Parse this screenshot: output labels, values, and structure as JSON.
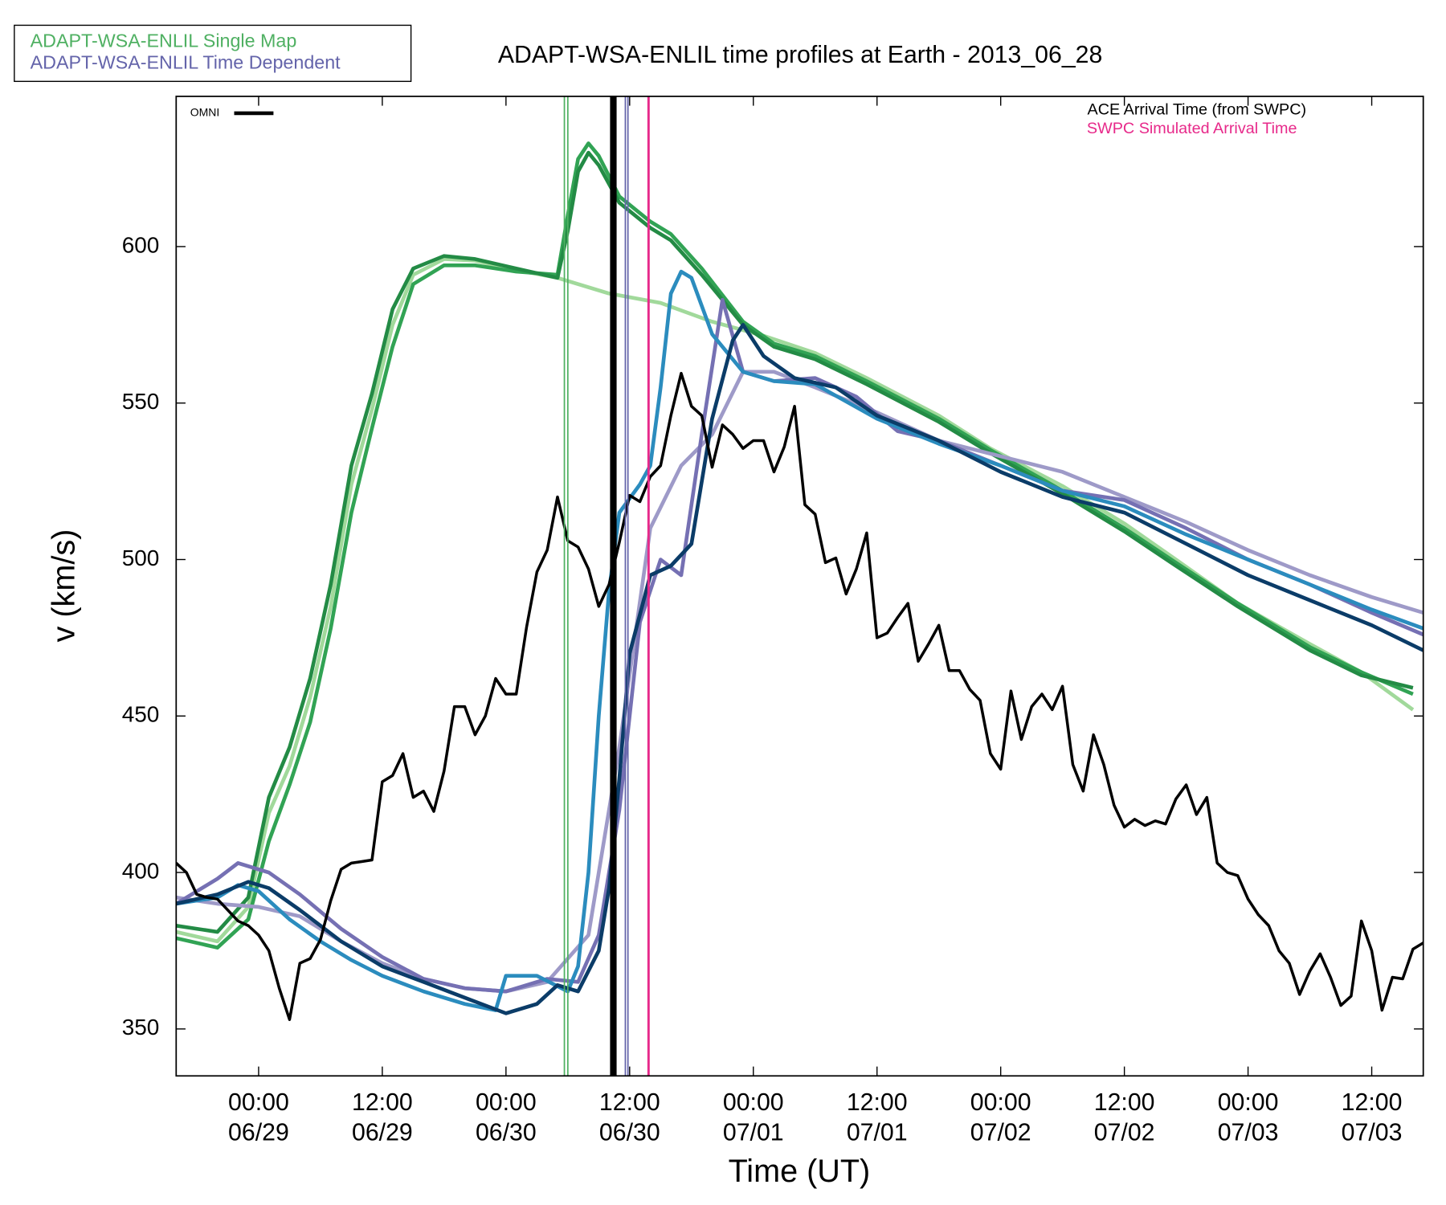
{
  "chart_data": {
    "type": "line",
    "title": "ADAPT-WSA-ENLIL time profiles at Earth - 2013_06_28",
    "xlabel": "Time (UT)",
    "ylabel": "v (km/s)",
    "xlim": [
      "06/28 16:00",
      "07/03 17:00"
    ],
    "ylim": [
      335,
      648
    ],
    "yticks": [
      350,
      400,
      450,
      500,
      550,
      600
    ],
    "xticks": [
      {
        "value": "06/29 00:00",
        "label": "00:00\n06/29"
      },
      {
        "value": "06/29 12:00",
        "label": "12:00\n06/29"
      },
      {
        "value": "06/30 00:00",
        "label": "00:00\n06/30"
      },
      {
        "value": "06/30 12:00",
        "label": "12:00\n06/30"
      },
      {
        "value": "07/01 00:00",
        "label": "00:00\n07/01"
      },
      {
        "value": "07/01 12:00",
        "label": "12:00\n07/01"
      },
      {
        "value": "07/02 00:00",
        "label": "00:00\n07/02"
      },
      {
        "value": "07/02 12:00",
        "label": "12:00\n07/02"
      },
      {
        "value": "07/03 00:00",
        "label": "00:00\n07/03"
      },
      {
        "value": "07/03 12:00",
        "label": "12:00\n07/03"
      }
    ],
    "ensembles": [
      {
        "name": "ADAPT-WSA-ENLIL Single Map",
        "color": "#4fb062",
        "arrivals": [
          "06/30 05:40",
          "06/30 06:00"
        ],
        "members": [
          {
            "color": "#a1d99b",
            "x": [
              "06/28 16:00",
              "06/28 20:00",
              "06/28 23:00",
              "06/29 01:00",
              "06/29 03:00",
              "06/29 05:00",
              "06/29 07:00",
              "06/29 09:00",
              "06/29 11:00",
              "06/29 13:00",
              "06/29 15:00",
              "06/29 18:00",
              "06/29 21:00",
              "06/30 01:00",
              "06/30 05:00",
              "06/30 10:00",
              "06/30 15:00",
              "06/30 20:00",
              "07/01 01:00",
              "07/01 06:00",
              "07/01 11:00",
              "07/01 18:00",
              "07/01 23:00",
              "07/02 06:00",
              "07/02 12:00",
              "07/02 17:00",
              "07/02 23:00",
              "07/03 06:00",
              "07/03 11:00",
              "07/03 16:00"
            ],
            "values": [
              381,
              378,
              389,
              419,
              434,
              456,
              485,
              524,
              548,
              575,
              591,
              596,
              595.5,
              592.5,
              590,
              585,
              582,
              576,
              571.5,
              566,
              558,
              546,
              535.5,
              523.5,
              511.5,
              500,
              486,
              473,
              464,
              452
            ]
          },
          {
            "color": "#31a354",
            "x": [
              "06/28 16:00",
              "06/28 20:00",
              "06/28 23:00",
              "06/29 01:00",
              "06/29 03:00",
              "06/29 05:00",
              "06/29 07:00",
              "06/29 09:00",
              "06/29 11:00",
              "06/29 13:00",
              "06/29 15:00",
              "06/29 18:00",
              "06/29 21:00",
              "06/30 01:00",
              "06/30 05:00",
              "06/30 06:00",
              "06/30 07:00",
              "06/30 08:00",
              "06/30 09:00",
              "06/30 11:00",
              "06/30 14:00",
              "06/30 16:00",
              "06/30 19:00",
              "06/30 23:00",
              "07/01 02:00",
              "07/01 06:00",
              "07/01 11:00",
              "07/01 18:00",
              "07/01 23:00",
              "07/02 06:00",
              "07/02 12:00",
              "07/02 17:00",
              "07/02 23:00",
              "07/03 06:00",
              "07/03 11:00",
              "07/03 16:00"
            ],
            "values": [
              379,
              376,
              385,
              410,
              428,
              448,
              478,
              515,
              542,
              568,
              588,
              594,
              594,
              592,
              591,
              610,
              628,
              633,
              629,
              616,
              608,
              604,
              593,
              576,
              569,
              565,
              557,
              545,
              535,
              522,
              510,
              499,
              486,
              472,
              464,
              457
            ]
          },
          {
            "color": "#238b45",
            "x": [
              "06/28 16:00",
              "06/28 20:00",
              "06/28 23:00",
              "06/29 01:00",
              "06/29 03:00",
              "06/29 05:00",
              "06/29 07:00",
              "06/29 09:00",
              "06/29 11:00",
              "06/29 13:00",
              "06/29 15:00",
              "06/29 18:00",
              "06/29 21:00",
              "06/30 01:00",
              "06/30 05:00",
              "06/30 06:00",
              "06/30 07:00",
              "06/30 08:00",
              "06/30 09:00",
              "06/30 11:00",
              "06/30 14:00",
              "06/30 16:00",
              "06/30 19:00",
              "06/30 23:00",
              "07/01 02:00",
              "07/01 06:00",
              "07/01 11:00",
              "07/01 18:00",
              "07/01 23:00",
              "07/02 06:00",
              "07/02 12:00",
              "07/02 17:00",
              "07/02 23:00",
              "07/03 06:00",
              "07/03 11:00",
              "07/03 16:00"
            ],
            "values": [
              383,
              381,
              392,
              424,
              440,
              462,
              492,
              530,
              553,
              580,
              593,
              597,
              596,
              593,
              590,
              605,
              624,
              630,
              626,
              614,
              606,
              602,
              591,
              575,
              568,
              564,
              556,
              544,
              534,
              521,
              509,
              498,
              485,
              471,
              463,
              459
            ]
          }
        ]
      },
      {
        "name": "ADAPT-WSA-ENLIL Time Dependent",
        "color": "#6464aa",
        "arrivals": [
          "06/30 11:35",
          "06/30 11:50"
        ],
        "members": [
          {
            "color": "#9e9ac8",
            "x": [
              "06/28 16:00",
              "06/28 20:00",
              "06/29 00:00",
              "06/29 04:00",
              "06/29 08:00",
              "06/29 12:00",
              "06/29 16:00",
              "06/29 20:00",
              "06/30 00:00",
              "06/30 04:00",
              "06/30 08:00",
              "06/30 11:00",
              "06/30 14:00",
              "06/30 17:00",
              "06/30 20:00",
              "06/30 23:00",
              "07/01 02:00",
              "07/01 06:00",
              "07/01 12:00",
              "07/01 18:00",
              "07/02 00:00",
              "07/02 06:00",
              "07/02 12:00",
              "07/02 18:00",
              "07/03 00:00",
              "07/03 06:00",
              "07/03 12:00",
              "07/03 17:00"
            ],
            "values": [
              392,
              390,
              389,
              386,
              378,
              371,
              366,
              363,
              362,
              365,
              380,
              440,
              510,
              530,
              540,
              560,
              560,
              555,
              547,
              538,
              533,
              528,
              520,
              512,
              503,
              495,
              488,
              483
            ]
          },
          {
            "color": "#7570b3",
            "x": [
              "06/28 16:00",
              "06/28 20:00",
              "06/28 22:00",
              "06/29 01:00",
              "06/29 04:00",
              "06/29 08:00",
              "06/29 12:00",
              "06/29 16:00",
              "06/29 20:00",
              "06/30 00:00",
              "06/30 04:00",
              "06/30 07:00",
              "06/30 09:00",
              "06/30 11:00",
              "06/30 13:00",
              "06/30 15:00",
              "06/30 17:00",
              "06/30 19:00",
              "06/30 21:00",
              "06/30 23:00",
              "07/01 02:00",
              "07/01 06:00",
              "07/01 10:00",
              "07/01 14:00",
              "07/01 18:00",
              "07/02 00:00",
              "07/02 06:00",
              "07/02 12:00",
              "07/02 18:00",
              "07/03 00:00",
              "07/03 06:00",
              "07/03 12:00",
              "07/03 17:00"
            ],
            "values": [
              390,
              398,
              403,
              400,
              393,
              382,
              373,
              366,
              363,
              362,
              366,
              365,
              380,
              420,
              480,
              500,
              495,
              540,
              583,
              560,
              557,
              558,
              552,
              541,
              538,
              530,
              522,
              519,
              510,
              500,
              492,
              483,
              476
            ]
          },
          {
            "color": "#2b8cbe",
            "x": [
              "06/28 16:00",
              "06/28 20:00",
              "06/28 22:00",
              "06/29 00:00",
              "06/29 03:00",
              "06/29 06:00",
              "06/29 09:00",
              "06/29 12:00",
              "06/29 16:00",
              "06/29 20:00",
              "06/29 23:00",
              "06/30 00:00",
              "06/30 03:00",
              "06/30 06:00",
              "06/30 07:00",
              "06/30 08:00",
              "06/30 09:00",
              "06/30 10:00",
              "06/30 11:00",
              "06/30 13:00",
              "06/30 14:00",
              "06/30 15:00",
              "06/30 16:00",
              "06/30 17:00",
              "06/30 18:00",
              "06/30 20:00",
              "06/30 23:00",
              "07/01 02:00",
              "07/01 06:00",
              "07/01 12:00",
              "07/01 18:00",
              "07/02 00:00",
              "07/02 06:00",
              "07/02 12:00",
              "07/02 18:00",
              "07/03 00:00",
              "07/03 06:00",
              "07/03 12:00",
              "07/03 17:00"
            ],
            "values": [
              390,
              392,
              396,
              394,
              385,
              378,
              372,
              367,
              362,
              358,
              356,
              367,
              367,
              362,
              370,
              400,
              450,
              490,
              515,
              524,
              530,
              555,
              585,
              592,
              590,
              572,
              560,
              557,
              556,
              545,
              537,
              530,
              522,
              517,
              508,
              500,
              492,
              484,
              478
            ]
          },
          {
            "color": "#0b3c68",
            "x": [
              "06/28 16:00",
              "06/28 20:00",
              "06/28 23:00",
              "06/29 01:00",
              "06/29 04:00",
              "06/29 08:00",
              "06/29 12:00",
              "06/29 16:00",
              "06/29 20:00",
              "06/30 00:00",
              "06/30 03:00",
              "06/30 05:00",
              "06/30 07:00",
              "06/30 09:00",
              "06/30 10:00",
              "06/30 11:00",
              "06/30 12:00",
              "06/30 14:00",
              "06/30 16:00",
              "06/30 18:00",
              "06/30 20:00",
              "06/30 22:00",
              "06/30 23:00",
              "07/01 01:00",
              "07/01 04:00",
              "07/01 08:00",
              "07/01 12:00",
              "07/01 18:00",
              "07/02 00:00",
              "07/02 06:00",
              "07/02 12:00",
              "07/02 18:00",
              "07/03 00:00",
              "07/03 06:00",
              "07/03 12:00",
              "07/03 17:00"
            ],
            "values": [
              390,
              393,
              397,
              395,
              388,
              378,
              370,
              365,
              360,
              355,
              358,
              364,
              362,
              375,
              395,
              430,
              470,
              495,
              498,
              505,
              545,
              570,
              575,
              565,
              558,
              555,
              546,
              538,
              528,
              520,
              515,
              505,
              495,
              487,
              479,
              471
            ]
          }
        ]
      }
    ],
    "series": [
      {
        "name": "OMNI",
        "color": "#000000",
        "x": [
          "06/28 16:00",
          "06/28 17:00",
          "06/28 18:00",
          "06/28 19:00",
          "06/28 20:00",
          "06/28 21:00",
          "06/28 22:00",
          "06/28 23:00",
          "06/29 00:00",
          "06/29 01:00",
          "06/29 02:00",
          "06/29 03:00",
          "06/29 04:00",
          "06/29 05:00",
          "06/29 06:00",
          "06/29 07:00",
          "06/29 08:00",
          "06/29 09:00",
          "06/29 10:00",
          "06/29 11:00",
          "06/29 12:00",
          "06/29 13:00",
          "06/29 14:00",
          "06/29 15:00",
          "06/29 16:00",
          "06/29 17:00",
          "06/29 18:00",
          "06/29 19:00",
          "06/29 20:00",
          "06/29 21:00",
          "06/29 22:00",
          "06/29 23:00",
          "06/30 00:00",
          "06/30 01:00",
          "06/30 02:00",
          "06/30 03:00",
          "06/30 04:00",
          "06/30 05:00",
          "06/30 06:00",
          "06/30 07:00",
          "06/30 08:00",
          "06/30 09:00",
          "06/30 10:00",
          "06/30 11:00",
          "06/30 12:00",
          "06/30 13:00",
          "06/30 14:00",
          "06/30 15:00",
          "06/30 16:00",
          "06/30 17:00",
          "06/30 18:00",
          "06/30 19:00",
          "06/30 20:00",
          "06/30 21:00",
          "06/30 22:00",
          "06/30 23:00",
          "07/01 00:00",
          "07/01 01:00",
          "07/01 02:00",
          "07/01 03:00",
          "07/01 04:00",
          "07/01 05:00",
          "07/01 06:00",
          "07/01 07:00",
          "07/01 08:00",
          "07/01 09:00",
          "07/01 10:00",
          "07/01 11:00",
          "07/01 12:00",
          "07/01 13:00",
          "07/01 14:00",
          "07/01 15:00",
          "07/01 16:00",
          "07/01 17:00",
          "07/01 18:00",
          "07/01 19:00",
          "07/01 20:00",
          "07/01 21:00",
          "07/01 22:00",
          "07/01 23:00",
          "07/02 00:00",
          "07/02 01:00",
          "07/02 02:00",
          "07/02 03:00",
          "07/02 04:00",
          "07/02 05:00",
          "07/02 06:00",
          "07/02 07:00",
          "07/02 08:00",
          "07/02 09:00",
          "07/02 10:00",
          "07/02 11:00",
          "07/02 12:00",
          "07/02 13:00",
          "07/02 14:00",
          "07/02 15:00",
          "07/02 16:00",
          "07/02 17:00",
          "07/02 18:00",
          "07/02 19:00",
          "07/02 20:00",
          "07/02 21:00",
          "07/02 22:00",
          "07/02 23:00",
          "07/03 00:00",
          "07/03 01:00",
          "07/03 02:00",
          "07/03 03:00",
          "07/03 04:00",
          "07/03 05:00",
          "07/03 06:00",
          "07/03 07:00",
          "07/03 08:00",
          "07/03 09:00",
          "07/03 10:00",
          "07/03 11:00",
          "07/03 12:00",
          "07/03 13:00",
          "07/03 14:00",
          "07/03 15:00",
          "07/03 16:00",
          "07/03 17:00"
        ],
        "values": [
          403,
          400,
          393,
          392,
          391.5,
          388,
          384.5,
          383,
          380,
          375,
          363,
          353,
          371,
          372.5,
          378.5,
          391,
          401,
          403,
          403.5,
          404,
          429,
          431,
          438,
          424,
          426,
          419.5,
          432.5,
          453,
          453,
          444,
          450,
          462,
          457,
          457,
          478.5,
          496,
          503,
          520,
          506,
          504,
          497,
          485,
          492,
          505.5,
          520.5,
          518.5,
          526.5,
          530,
          546,
          559.5,
          549,
          546,
          529.5,
          543,
          540,
          535.5,
          538,
          538,
          528,
          536,
          549,
          517.5,
          514.5,
          499,
          500.5,
          489,
          497,
          508.5,
          475,
          476.5,
          481.5,
          486,
          467.5,
          473,
          479,
          464.5,
          464.5,
          458.5,
          455,
          438,
          433,
          458,
          442.5,
          453,
          457,
          452,
          459.5,
          434.5,
          426,
          444,
          434.5,
          421.5,
          414.5,
          417,
          415,
          416.5,
          415.5,
          423.5,
          428,
          418.5,
          424,
          403,
          400,
          399,
          391.5,
          386.5,
          383,
          375,
          371,
          361,
          368.5,
          374,
          366.5,
          357.5,
          360.5,
          384.5,
          375,
          356,
          366.5,
          366,
          375.5,
          377.5
        ]
      }
    ],
    "markers": [
      {
        "name": "ACE Arrival Time (from SWPC)",
        "color": "#000000",
        "x": "06/30 10:25"
      },
      {
        "name": "SWPC Simulated Arrival Time",
        "color": "#e7298a",
        "x": "06/30 13:50"
      }
    ]
  }
}
